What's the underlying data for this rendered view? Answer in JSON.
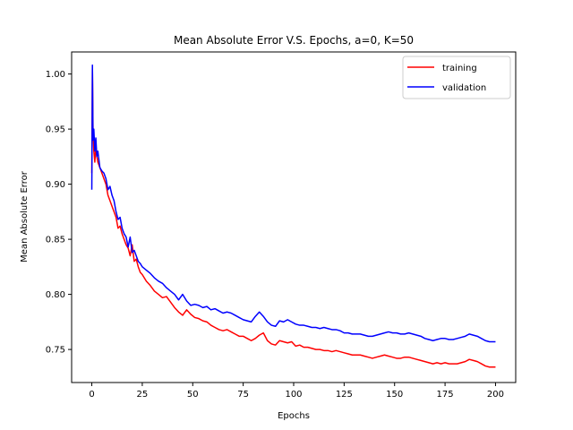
{
  "chart_data": {
    "type": "line",
    "title": "Mean Absolute Error V.S. Epochs, a=0, K=50",
    "xlabel": "Epochs",
    "ylabel": "Mean Absolute Error",
    "xlim": [
      -10,
      210
    ],
    "ylim": [
      0.72,
      1.02
    ],
    "xticks": [
      0,
      25,
      50,
      75,
      100,
      125,
      150,
      175,
      200
    ],
    "xtick_labels": [
      "0",
      "25",
      "50",
      "75",
      "100",
      "125",
      "150",
      "175",
      "200"
    ],
    "yticks": [
      0.75,
      0.8,
      0.85,
      0.9,
      0.95,
      1.0
    ],
    "ytick_labels": [
      "0.75",
      "0.80",
      "0.85",
      "0.90",
      "0.95",
      "1.00"
    ],
    "grid": false,
    "legend_position": "upper-right",
    "series": [
      {
        "name": "training",
        "color": "#ff0000",
        "x": [
          0,
          0.3,
          0.6,
          1,
          1.5,
          2,
          2.5,
          3,
          4,
          5,
          6,
          7,
          8,
          9,
          10,
          11,
          12,
          13,
          14,
          15,
          16,
          17,
          18,
          19,
          20,
          21,
          22,
          23,
          24,
          25,
          27,
          29,
          31,
          33,
          35,
          37,
          39,
          41,
          43,
          45,
          47,
          49,
          51,
          53,
          55,
          57,
          59,
          61,
          63,
          65,
          67,
          69,
          71,
          73,
          75,
          77,
          79,
          81,
          83,
          85,
          87,
          89,
          91,
          93,
          95,
          97,
          99,
          101,
          103,
          105,
          107,
          109,
          111,
          113,
          115,
          117,
          119,
          121,
          123,
          125,
          127,
          129,
          131,
          133,
          135,
          137,
          139,
          141,
          143,
          145,
          147,
          149,
          151,
          153,
          155,
          157,
          159,
          161,
          163,
          165,
          167,
          169,
          171,
          173,
          175,
          177,
          179,
          181,
          183,
          185,
          187,
          189,
          191,
          193,
          195,
          197,
          199,
          200
        ],
        "y": [
          0.91,
          1.005,
          0.95,
          0.93,
          0.92,
          0.935,
          0.925,
          0.92,
          0.915,
          0.91,
          0.905,
          0.9,
          0.89,
          0.885,
          0.88,
          0.875,
          0.87,
          0.86,
          0.862,
          0.855,
          0.85,
          0.845,
          0.842,
          0.835,
          0.845,
          0.83,
          0.832,
          0.825,
          0.82,
          0.818,
          0.812,
          0.808,
          0.803,
          0.8,
          0.797,
          0.798,
          0.793,
          0.788,
          0.784,
          0.781,
          0.786,
          0.782,
          0.779,
          0.778,
          0.776,
          0.775,
          0.772,
          0.77,
          0.768,
          0.767,
          0.768,
          0.766,
          0.764,
          0.762,
          0.762,
          0.76,
          0.758,
          0.76,
          0.763,
          0.765,
          0.758,
          0.755,
          0.754,
          0.758,
          0.757,
          0.756,
          0.757,
          0.753,
          0.754,
          0.752,
          0.752,
          0.751,
          0.75,
          0.75,
          0.749,
          0.749,
          0.748,
          0.749,
          0.748,
          0.747,
          0.746,
          0.745,
          0.745,
          0.745,
          0.744,
          0.743,
          0.742,
          0.743,
          0.744,
          0.745,
          0.744,
          0.743,
          0.742,
          0.742,
          0.743,
          0.743,
          0.742,
          0.741,
          0.74,
          0.739,
          0.738,
          0.737,
          0.738,
          0.737,
          0.738,
          0.737,
          0.737,
          0.737,
          0.738,
          0.739,
          0.741,
          0.74,
          0.739,
          0.737,
          0.735,
          0.734,
          0.734,
          0.734
        ]
      },
      {
        "name": "validation",
        "color": "#0000ff",
        "x": [
          0,
          0.3,
          0.6,
          1,
          1.5,
          2,
          2.5,
          3,
          4,
          5,
          6,
          7,
          8,
          9,
          10,
          11,
          12,
          13,
          14,
          15,
          16,
          17,
          18,
          19,
          20,
          21,
          22,
          23,
          24,
          25,
          27,
          29,
          31,
          33,
          35,
          37,
          39,
          41,
          43,
          45,
          47,
          49,
          51,
          53,
          55,
          57,
          59,
          61,
          63,
          65,
          67,
          69,
          71,
          73,
          75,
          77,
          79,
          81,
          83,
          85,
          87,
          89,
          91,
          93,
          95,
          97,
          99,
          101,
          103,
          105,
          107,
          109,
          111,
          113,
          115,
          117,
          119,
          121,
          123,
          125,
          127,
          129,
          131,
          133,
          135,
          137,
          139,
          141,
          143,
          145,
          147,
          149,
          151,
          153,
          155,
          157,
          159,
          161,
          163,
          165,
          167,
          169,
          171,
          173,
          175,
          177,
          179,
          181,
          183,
          185,
          187,
          189,
          191,
          193,
          195,
          197,
          199,
          200
        ],
        "y": [
          0.895,
          1.008,
          0.94,
          0.95,
          0.93,
          0.942,
          0.925,
          0.93,
          0.915,
          0.912,
          0.91,
          0.905,
          0.895,
          0.898,
          0.89,
          0.885,
          0.875,
          0.868,
          0.87,
          0.86,
          0.855,
          0.852,
          0.843,
          0.852,
          0.838,
          0.84,
          0.835,
          0.83,
          0.828,
          0.825,
          0.822,
          0.819,
          0.815,
          0.812,
          0.81,
          0.806,
          0.803,
          0.8,
          0.795,
          0.8,
          0.794,
          0.79,
          0.791,
          0.79,
          0.788,
          0.789,
          0.786,
          0.787,
          0.785,
          0.783,
          0.784,
          0.783,
          0.781,
          0.779,
          0.777,
          0.776,
          0.775,
          0.78,
          0.784,
          0.78,
          0.775,
          0.772,
          0.771,
          0.776,
          0.775,
          0.777,
          0.775,
          0.773,
          0.772,
          0.772,
          0.771,
          0.77,
          0.77,
          0.769,
          0.77,
          0.769,
          0.768,
          0.768,
          0.767,
          0.765,
          0.765,
          0.764,
          0.764,
          0.764,
          0.763,
          0.762,
          0.762,
          0.763,
          0.764,
          0.765,
          0.766,
          0.765,
          0.765,
          0.764,
          0.764,
          0.765,
          0.764,
          0.763,
          0.762,
          0.76,
          0.759,
          0.758,
          0.759,
          0.76,
          0.76,
          0.759,
          0.759,
          0.76,
          0.761,
          0.762,
          0.764,
          0.763,
          0.762,
          0.76,
          0.758,
          0.757,
          0.757,
          0.757
        ]
      }
    ]
  }
}
